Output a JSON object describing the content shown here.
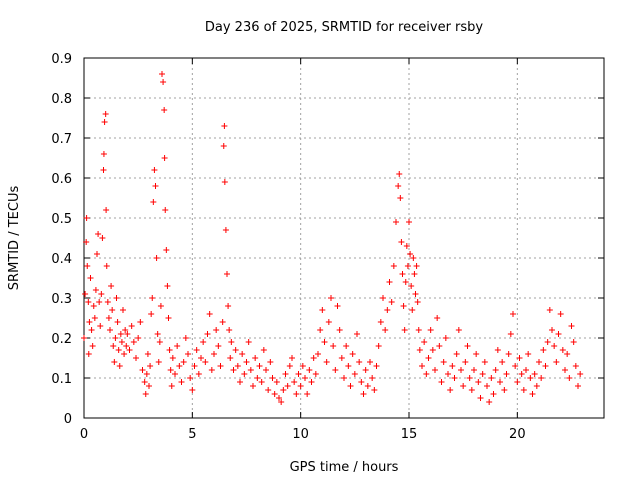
{
  "chart_data": {
    "type": "scatter",
    "title": "Day 236 of 2025, SRMTID for receiver rsby",
    "xlabel": "GPS time / hours",
    "ylabel": "SRMTID / TECUs",
    "xlim": [
      0,
      24
    ],
    "ylim": [
      0,
      0.9
    ],
    "xticks": [
      0,
      5,
      10,
      15,
      20
    ],
    "xtick_labels": [
      "0",
      "5",
      "10",
      "15",
      "20"
    ],
    "yticks": [
      0,
      0.1,
      0.2,
      0.3,
      0.4,
      0.5,
      0.6,
      0.7,
      0.8,
      0.9
    ],
    "ytick_labels": [
      "0",
      "0.1",
      "0.2",
      "0.3",
      "0.4",
      "0.5",
      "0.6",
      "0.7",
      "0.8",
      "0.9"
    ],
    "grid": true,
    "marker": "+",
    "color": "#ff0000",
    "series": [
      {
        "name": "SRMTID",
        "points": [
          [
            0.0,
            0.2
          ],
          [
            0.05,
            0.31
          ],
          [
            0.1,
            0.44
          ],
          [
            0.12,
            0.5
          ],
          [
            0.15,
            0.38
          ],
          [
            0.2,
            0.29
          ],
          [
            0.22,
            0.16
          ],
          [
            0.25,
            0.24
          ],
          [
            0.3,
            0.35
          ],
          [
            0.35,
            0.22
          ],
          [
            0.4,
            0.18
          ],
          [
            0.45,
            0.28
          ],
          [
            0.5,
            0.25
          ],
          [
            0.55,
            0.32
          ],
          [
            0.6,
            0.41
          ],
          [
            0.65,
            0.46
          ],
          [
            0.7,
            0.29
          ],
          [
            0.75,
            0.23
          ],
          [
            0.8,
            0.31
          ],
          [
            0.85,
            0.45
          ],
          [
            0.9,
            0.62
          ],
          [
            0.92,
            0.66
          ],
          [
            0.95,
            0.74
          ],
          [
            1.0,
            0.76
          ],
          [
            1.02,
            0.52
          ],
          [
            1.05,
            0.38
          ],
          [
            1.1,
            0.29
          ],
          [
            1.15,
            0.25
          ],
          [
            1.2,
            0.22
          ],
          [
            1.25,
            0.33
          ],
          [
            1.3,
            0.27
          ],
          [
            1.35,
            0.18
          ],
          [
            1.4,
            0.14
          ],
          [
            1.45,
            0.2
          ],
          [
            1.5,
            0.3
          ],
          [
            1.55,
            0.24
          ],
          [
            1.6,
            0.17
          ],
          [
            1.65,
            0.13
          ],
          [
            1.7,
            0.21
          ],
          [
            1.75,
            0.19
          ],
          [
            1.8,
            0.27
          ],
          [
            1.85,
            0.16
          ],
          [
            1.9,
            0.22
          ],
          [
            1.95,
            0.18
          ],
          [
            2.0,
            0.21
          ],
          [
            2.1,
            0.17
          ],
          [
            2.2,
            0.23
          ],
          [
            2.3,
            0.19
          ],
          [
            2.4,
            0.15
          ],
          [
            2.5,
            0.2
          ],
          [
            2.6,
            0.24
          ],
          [
            2.7,
            0.12
          ],
          [
            2.8,
            0.09
          ],
          [
            2.85,
            0.06
          ],
          [
            2.9,
            0.11
          ],
          [
            2.95,
            0.16
          ],
          [
            3.0,
            0.08
          ],
          [
            3.05,
            0.13
          ],
          [
            3.1,
            0.26
          ],
          [
            3.15,
            0.3
          ],
          [
            3.2,
            0.54
          ],
          [
            3.25,
            0.62
          ],
          [
            3.3,
            0.58
          ],
          [
            3.35,
            0.4
          ],
          [
            3.4,
            0.21
          ],
          [
            3.45,
            0.14
          ],
          [
            3.5,
            0.19
          ],
          [
            3.55,
            0.28
          ],
          [
            3.6,
            0.86
          ],
          [
            3.65,
            0.84
          ],
          [
            3.7,
            0.77
          ],
          [
            3.72,
            0.65
          ],
          [
            3.75,
            0.52
          ],
          [
            3.8,
            0.42
          ],
          [
            3.85,
            0.33
          ],
          [
            3.9,
            0.25
          ],
          [
            3.95,
            0.17
          ],
          [
            4.0,
            0.12
          ],
          [
            4.05,
            0.08
          ],
          [
            4.1,
            0.15
          ],
          [
            4.2,
            0.11
          ],
          [
            4.3,
            0.18
          ],
          [
            4.4,
            0.13
          ],
          [
            4.5,
            0.09
          ],
          [
            4.6,
            0.14
          ],
          [
            4.7,
            0.2
          ],
          [
            4.8,
            0.16
          ],
          [
            4.9,
            0.1
          ],
          [
            5.0,
            0.07
          ],
          [
            5.1,
            0.13
          ],
          [
            5.2,
            0.17
          ],
          [
            5.3,
            0.11
          ],
          [
            5.4,
            0.15
          ],
          [
            5.5,
            0.19
          ],
          [
            5.6,
            0.14
          ],
          [
            5.7,
            0.21
          ],
          [
            5.8,
            0.26
          ],
          [
            5.9,
            0.12
          ],
          [
            6.0,
            0.16
          ],
          [
            6.1,
            0.22
          ],
          [
            6.2,
            0.18
          ],
          [
            6.3,
            0.13
          ],
          [
            6.4,
            0.24
          ],
          [
            6.45,
            0.68
          ],
          [
            6.48,
            0.73
          ],
          [
            6.5,
            0.59
          ],
          [
            6.55,
            0.47
          ],
          [
            6.6,
            0.36
          ],
          [
            6.65,
            0.28
          ],
          [
            6.7,
            0.22
          ],
          [
            6.75,
            0.15
          ],
          [
            6.8,
            0.19
          ],
          [
            6.9,
            0.12
          ],
          [
            7.0,
            0.17
          ],
          [
            7.1,
            0.13
          ],
          [
            7.2,
            0.09
          ],
          [
            7.3,
            0.16
          ],
          [
            7.4,
            0.11
          ],
          [
            7.5,
            0.14
          ],
          [
            7.6,
            0.19
          ],
          [
            7.7,
            0.12
          ],
          [
            7.8,
            0.08
          ],
          [
            7.9,
            0.15
          ],
          [
            8.0,
            0.1
          ],
          [
            8.1,
            0.13
          ],
          [
            8.2,
            0.09
          ],
          [
            8.3,
            0.17
          ],
          [
            8.4,
            0.12
          ],
          [
            8.5,
            0.07
          ],
          [
            8.6,
            0.14
          ],
          [
            8.7,
            0.1
          ],
          [
            8.8,
            0.06
          ],
          [
            8.9,
            0.09
          ],
          [
            9.0,
            0.05
          ],
          [
            9.1,
            0.04
          ],
          [
            9.2,
            0.07
          ],
          [
            9.3,
            0.11
          ],
          [
            9.4,
            0.08
          ],
          [
            9.5,
            0.13
          ],
          [
            9.6,
            0.15
          ],
          [
            9.7,
            0.09
          ],
          [
            9.8,
            0.06
          ],
          [
            9.9,
            0.11
          ],
          [
            10.0,
            0.08
          ],
          [
            10.1,
            0.13
          ],
          [
            10.2,
            0.1
          ],
          [
            10.3,
            0.06
          ],
          [
            10.4,
            0.12
          ],
          [
            10.5,
            0.09
          ],
          [
            10.6,
            0.15
          ],
          [
            10.7,
            0.11
          ],
          [
            10.8,
            0.16
          ],
          [
            10.9,
            0.22
          ],
          [
            11.0,
            0.27
          ],
          [
            11.1,
            0.19
          ],
          [
            11.2,
            0.14
          ],
          [
            11.3,
            0.24
          ],
          [
            11.4,
            0.3
          ],
          [
            11.5,
            0.18
          ],
          [
            11.6,
            0.12
          ],
          [
            11.7,
            0.28
          ],
          [
            11.8,
            0.22
          ],
          [
            11.9,
            0.15
          ],
          [
            12.0,
            0.1
          ],
          [
            12.1,
            0.18
          ],
          [
            12.2,
            0.13
          ],
          [
            12.3,
            0.08
          ],
          [
            12.4,
            0.16
          ],
          [
            12.5,
            0.11
          ],
          [
            12.6,
            0.21
          ],
          [
            12.7,
            0.14
          ],
          [
            12.8,
            0.09
          ],
          [
            12.9,
            0.06
          ],
          [
            13.0,
            0.12
          ],
          [
            13.1,
            0.08
          ],
          [
            13.2,
            0.14
          ],
          [
            13.3,
            0.1
          ],
          [
            13.4,
            0.07
          ],
          [
            13.5,
            0.13
          ],
          [
            13.6,
            0.18
          ],
          [
            13.7,
            0.24
          ],
          [
            13.8,
            0.3
          ],
          [
            13.9,
            0.22
          ],
          [
            14.0,
            0.27
          ],
          [
            14.1,
            0.34
          ],
          [
            14.2,
            0.29
          ],
          [
            14.3,
            0.38
          ],
          [
            14.4,
            0.49
          ],
          [
            14.5,
            0.58
          ],
          [
            14.55,
            0.61
          ],
          [
            14.6,
            0.55
          ],
          [
            14.65,
            0.44
          ],
          [
            14.7,
            0.36
          ],
          [
            14.75,
            0.28
          ],
          [
            14.8,
            0.22
          ],
          [
            14.85,
            0.34
          ],
          [
            14.9,
            0.43
          ],
          [
            14.95,
            0.38
          ],
          [
            15.0,
            0.49
          ],
          [
            15.05,
            0.41
          ],
          [
            15.1,
            0.33
          ],
          [
            15.15,
            0.27
          ],
          [
            15.2,
            0.4
          ],
          [
            15.25,
            0.36
          ],
          [
            15.3,
            0.31
          ],
          [
            15.35,
            0.38
          ],
          [
            15.4,
            0.29
          ],
          [
            15.45,
            0.22
          ],
          [
            15.5,
            0.17
          ],
          [
            15.6,
            0.13
          ],
          [
            15.7,
            0.19
          ],
          [
            15.8,
            0.11
          ],
          [
            15.9,
            0.15
          ],
          [
            16.0,
            0.22
          ],
          [
            16.1,
            0.17
          ],
          [
            16.2,
            0.12
          ],
          [
            16.3,
            0.25
          ],
          [
            16.4,
            0.18
          ],
          [
            16.5,
            0.09
          ],
          [
            16.6,
            0.14
          ],
          [
            16.7,
            0.2
          ],
          [
            16.8,
            0.11
          ],
          [
            16.9,
            0.07
          ],
          [
            17.0,
            0.13
          ],
          [
            17.1,
            0.1
          ],
          [
            17.2,
            0.16
          ],
          [
            17.3,
            0.22
          ],
          [
            17.4,
            0.12
          ],
          [
            17.5,
            0.08
          ],
          [
            17.6,
            0.14
          ],
          [
            17.7,
            0.18
          ],
          [
            17.8,
            0.1
          ],
          [
            17.9,
            0.07
          ],
          [
            18.0,
            0.12
          ],
          [
            18.1,
            0.16
          ],
          [
            18.2,
            0.09
          ],
          [
            18.3,
            0.05
          ],
          [
            18.4,
            0.11
          ],
          [
            18.5,
            0.14
          ],
          [
            18.6,
            0.08
          ],
          [
            18.7,
            0.04
          ],
          [
            18.8,
            0.1
          ],
          [
            18.9,
            0.06
          ],
          [
            19.0,
            0.12
          ],
          [
            19.1,
            0.17
          ],
          [
            19.2,
            0.09
          ],
          [
            19.3,
            0.14
          ],
          [
            19.4,
            0.07
          ],
          [
            19.5,
            0.11
          ],
          [
            19.6,
            0.16
          ],
          [
            19.7,
            0.21
          ],
          [
            19.8,
            0.26
          ],
          [
            19.9,
            0.13
          ],
          [
            20.0,
            0.09
          ],
          [
            20.1,
            0.15
          ],
          [
            20.2,
            0.11
          ],
          [
            20.3,
            0.07
          ],
          [
            20.4,
            0.12
          ],
          [
            20.5,
            0.16
          ],
          [
            20.6,
            0.1
          ],
          [
            20.7,
            0.06
          ],
          [
            20.8,
            0.11
          ],
          [
            20.9,
            0.08
          ],
          [
            21.0,
            0.14
          ],
          [
            21.1,
            0.1
          ],
          [
            21.2,
            0.17
          ],
          [
            21.3,
            0.13
          ],
          [
            21.4,
            0.19
          ],
          [
            21.5,
            0.27
          ],
          [
            21.6,
            0.22
          ],
          [
            21.7,
            0.18
          ],
          [
            21.8,
            0.14
          ],
          [
            21.9,
            0.21
          ],
          [
            22.0,
            0.26
          ],
          [
            22.1,
            0.17
          ],
          [
            22.2,
            0.12
          ],
          [
            22.3,
            0.16
          ],
          [
            22.4,
            0.1
          ],
          [
            22.5,
            0.23
          ],
          [
            22.6,
            0.19
          ],
          [
            22.7,
            0.13
          ],
          [
            22.8,
            0.08
          ],
          [
            22.9,
            0.11
          ]
        ]
      }
    ]
  }
}
